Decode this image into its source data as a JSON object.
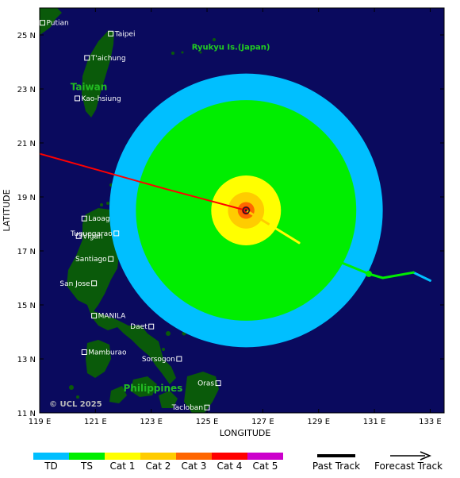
{
  "map": {
    "x_axis_title": "LONGITUDE",
    "y_axis_title": "LATITUDE",
    "x_ticks": [
      {
        "lon": 119,
        "label": "119 E"
      },
      {
        "lon": 121,
        "label": "121 E"
      },
      {
        "lon": 123,
        "label": "123 E"
      },
      {
        "lon": 125,
        "label": "125 E"
      },
      {
        "lon": 127,
        "label": "127 E"
      },
      {
        "lon": 129,
        "label": "129 E"
      },
      {
        "lon": 131,
        "label": "131 E"
      },
      {
        "lon": 133,
        "label": "133 E"
      }
    ],
    "y_ticks": [
      {
        "lat": 11,
        "label": "11 N"
      },
      {
        "lat": 13,
        "label": "13 N"
      },
      {
        "lat": 15,
        "label": "15 N"
      },
      {
        "lat": 17,
        "label": "17 N"
      },
      {
        "lat": 19,
        "label": "19 N"
      },
      {
        "lat": 21,
        "label": "21 N"
      },
      {
        "lat": 23,
        "label": "23 N"
      },
      {
        "lat": 25,
        "label": "25 N"
      }
    ],
    "lon_range": [
      119,
      133.5
    ],
    "lat_range": [
      11,
      26
    ],
    "colors": {
      "ocean": "#0a0a5e",
      "land": "#0a5a0a",
      "TD": "#00bfff",
      "TS": "#00ee00",
      "Cat1": "#ffff00",
      "Cat2": "#ffcc00",
      "Cat3": "#ff6600",
      "Cat4": "#ff0000",
      "Cat5": "#cc00cc"
    },
    "cities": [
      {
        "name": "Putian",
        "lon": 119.1,
        "lat": 25.45
      },
      {
        "name": "Taipei",
        "lon": 121.55,
        "lat": 25.05
      },
      {
        "name": "T'aichung",
        "lon": 120.7,
        "lat": 24.15
      },
      {
        "name": "Kao-hsiung",
        "lon": 120.35,
        "lat": 22.65
      },
      {
        "name": "Laoag",
        "lon": 120.6,
        "lat": 18.2
      },
      {
        "name": "Tuguegarao",
        "lon": 121.75,
        "lat": 17.65
      },
      {
        "name": "Vigan",
        "lon": 120.4,
        "lat": 17.55
      },
      {
        "name": "Santiago",
        "lon": 121.55,
        "lat": 16.7
      },
      {
        "name": "San Jose",
        "lon": 120.95,
        "lat": 15.8
      },
      {
        "name": "MANILA",
        "lon": 120.95,
        "lat": 14.6
      },
      {
        "name": "Daet",
        "lon": 123.0,
        "lat": 14.2
      },
      {
        "name": "Mamburao",
        "lon": 120.6,
        "lat": 13.25
      },
      {
        "name": "Sorsogon",
        "lon": 124.0,
        "lat": 13.0
      },
      {
        "name": "Oras",
        "lon": 125.4,
        "lat": 12.1
      },
      {
        "name": "Tacloban",
        "lon": 125.0,
        "lat": 11.2
      }
    ],
    "region_labels": [
      {
        "id": "taiwan",
        "text": "Taiwan",
        "lon": 120.1,
        "lat": 22.95
      },
      {
        "id": "philippines",
        "text": "Philippines",
        "lon": 122.0,
        "lat": 11.8
      }
    ],
    "ryukyu_label": {
      "text": "Ryukyu Is.(Japan)",
      "lon": 124.45,
      "lat": 24.45
    },
    "copyright": "© UCL 2025",
    "storm_center": {
      "lon": 126.4,
      "lat": 18.5
    },
    "wind_radii_deg": {
      "TD": 4.9,
      "TS": 3.95,
      "Cat1": 1.25,
      "Cat2": 0.65,
      "Cat3": 0.3,
      "Cat4": 0.15
    },
    "past_track": [
      {
        "lon": 133.0,
        "lat": 15.9,
        "cat": "TD"
      },
      {
        "lon": 132.4,
        "lat": 16.2,
        "cat": "TS"
      },
      {
        "lon": 131.3,
        "lat": 16.0,
        "cat": "TS"
      },
      {
        "lon": 130.8,
        "lat": 16.15,
        "cat": "TS"
      },
      {
        "lon": 129.5,
        "lat": 16.7,
        "cat": "TS"
      },
      {
        "lon": 128.3,
        "lat": 17.3,
        "cat": "Cat1"
      },
      {
        "lon": 127.2,
        "lat": 18.0,
        "cat": "Cat2"
      },
      {
        "lon": 126.4,
        "lat": 18.5,
        "cat": "Cat3"
      }
    ],
    "forecast_track": [
      {
        "lon": 126.4,
        "lat": 18.5
      },
      {
        "lon": 123.5,
        "lat": 19.3
      },
      {
        "lon": 119.0,
        "lat": 20.6
      }
    ],
    "current_marker": {
      "lon": 130.8,
      "lat": 16.15
    }
  },
  "legend": {
    "categories": [
      {
        "key": "TD",
        "label": "TD"
      },
      {
        "key": "TS",
        "label": "TS"
      },
      {
        "key": "Cat1",
        "label": "Cat 1"
      },
      {
        "key": "Cat2",
        "label": "Cat 2"
      },
      {
        "key": "Cat3",
        "label": "Cat 3"
      },
      {
        "key": "Cat4",
        "label": "Cat 4"
      },
      {
        "key": "Cat5",
        "label": "Cat 5"
      }
    ],
    "past_track_label": "Past Track",
    "forecast_track_label": "Forecast Track"
  }
}
